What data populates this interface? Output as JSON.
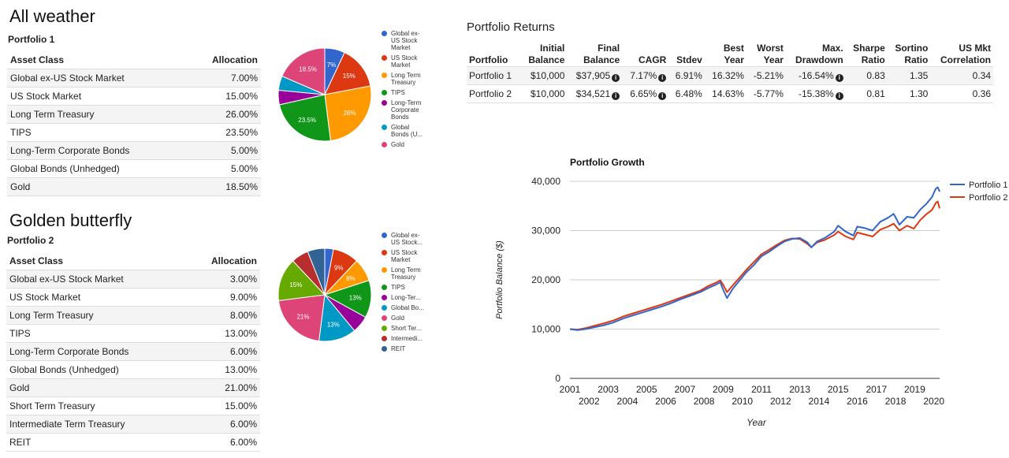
{
  "sections": [
    {
      "heading": "All weather",
      "portfolio": "Portfolio 1",
      "col_asset": "Asset Class",
      "col_alloc": "Allocation",
      "rows": [
        {
          "asset": "Global ex-US Stock Market",
          "alloc": "7.00%"
        },
        {
          "asset": "US Stock Market",
          "alloc": "15.00%"
        },
        {
          "asset": "Long Term Treasury",
          "alloc": "26.00%"
        },
        {
          "asset": "TIPS",
          "alloc": "23.50%"
        },
        {
          "asset": "Long-Term Corporate Bonds",
          "alloc": "5.00%"
        },
        {
          "asset": "Global Bonds (Unhedged)",
          "alloc": "5.00%"
        },
        {
          "asset": "Gold",
          "alloc": "18.50%"
        }
      ]
    },
    {
      "heading": "Golden butterfly",
      "portfolio": "Portfolio 2",
      "col_asset": "Asset Class",
      "col_alloc": "Allocation",
      "rows": [
        {
          "asset": "Global ex-US Stock Market",
          "alloc": "3.00%"
        },
        {
          "asset": "US Stock Market",
          "alloc": "9.00%"
        },
        {
          "asset": "Long Term Treasury",
          "alloc": "8.00%"
        },
        {
          "asset": "TIPS",
          "alloc": "13.00%"
        },
        {
          "asset": "Long-Term Corporate Bonds",
          "alloc": "6.00%"
        },
        {
          "asset": "Global Bonds (Unhedged)",
          "alloc": "13.00%"
        },
        {
          "asset": "Gold",
          "alloc": "21.00%"
        },
        {
          "asset": "Short Term Treasury",
          "alloc": "15.00%"
        },
        {
          "asset": "Intermediate Term Treasury",
          "alloc": "6.00%"
        },
        {
          "asset": "REIT",
          "alloc": "6.00%"
        }
      ]
    }
  ],
  "returns": {
    "title": "Portfolio Returns",
    "headers": [
      {
        "l1": "",
        "l2": "Portfolio"
      },
      {
        "l1": "Initial",
        "l2": "Balance"
      },
      {
        "l1": "Final",
        "l2": "Balance"
      },
      {
        "l1": "",
        "l2": "CAGR"
      },
      {
        "l1": "",
        "l2": "Stdev"
      },
      {
        "l1": "Best",
        "l2": "Year"
      },
      {
        "l1": "Worst",
        "l2": "Year"
      },
      {
        "l1": "Max.",
        "l2": "Drawdown"
      },
      {
        "l1": "Sharpe",
        "l2": "Ratio"
      },
      {
        "l1": "Sortino",
        "l2": "Ratio"
      },
      {
        "l1": "US Mkt",
        "l2": "Correlation"
      }
    ],
    "rows": [
      {
        "name": "Portfolio 1",
        "initial": "$10,000",
        "final": "$37,905",
        "cagr": "7.17%",
        "stdev": "6.91%",
        "best": "16.32%",
        "worst": "-5.21%",
        "maxdd": "-16.54%",
        "sharpe": "0.83",
        "sortino": "1.35",
        "corr": "0.34"
      },
      {
        "name": "Portfolio 2",
        "initial": "$10,000",
        "final": "$34,521",
        "cagr": "6.65%",
        "stdev": "6.48%",
        "best": "14.63%",
        "worst": "-5.77%",
        "maxdd": "-15.38%",
        "sharpe": "0.81",
        "sortino": "1.30",
        "corr": "0.36"
      }
    ],
    "info_glyph": "i"
  },
  "chart_data": [
    {
      "type": "pie",
      "title": "Portfolio 1",
      "labels": [
        "Global ex-US Stock Market",
        "US Stock Market",
        "Long Term Treasury",
        "TIPS",
        "Long-Term Corporate Bonds",
        "Global Bonds (U...",
        "Gold"
      ],
      "legend_labels": [
        [
          "Global ex-",
          "US Stock",
          "Market"
        ],
        [
          "US Stock",
          "Market"
        ],
        [
          "Long Term",
          "Treasury"
        ],
        [
          "TIPS"
        ],
        [
          "Long-Term",
          "Corporate",
          "Bonds"
        ],
        [
          "Global",
          "Bonds (U..."
        ],
        [
          "Gold"
        ]
      ],
      "values": [
        7,
        15,
        26,
        23.5,
        5,
        5,
        18.5
      ],
      "slice_labels": [
        "7%",
        "15%",
        "26%",
        "23.5%",
        "",
        "",
        "18.5%"
      ],
      "colors": [
        "#3366cc",
        "#dc3912",
        "#ff9900",
        "#109618",
        "#990099",
        "#0099c6",
        "#dd4477"
      ]
    },
    {
      "type": "pie",
      "title": "Portfolio 2",
      "legend_labels": [
        [
          "Global ex-",
          "US Stock..."
        ],
        [
          "US Stock",
          "Market"
        ],
        [
          "Long Term",
          "Treasury"
        ],
        [
          "TIPS"
        ],
        [
          "Long-Ter..."
        ],
        [
          "Global Bo..."
        ],
        [
          "Gold"
        ],
        [
          "Short Ter..."
        ],
        [
          "Intermedi..."
        ],
        [
          "REIT"
        ]
      ],
      "values": [
        3,
        9,
        8,
        13,
        6,
        13,
        21,
        15,
        6,
        6
      ],
      "slice_labels": [
        "",
        "9%",
        "8%",
        "13%",
        "",
        "13%",
        "21%",
        "15%",
        "",
        ""
      ],
      "colors": [
        "#3366cc",
        "#dc3912",
        "#ff9900",
        "#109618",
        "#990099",
        "#0099c6",
        "#dd4477",
        "#66aa00",
        "#b82e2e",
        "#316395"
      ]
    },
    {
      "type": "line",
      "title": "Portfolio Growth",
      "xlabel": "Year",
      "ylabel": "Portfolio Balance ($)",
      "xlim": [
        2001,
        2020.3
      ],
      "ylim": [
        0,
        40000
      ],
      "yticks": [
        "0",
        "10,000",
        "20,000",
        "30,000",
        "40,000"
      ],
      "xticks_top": [
        "2001",
        "2003",
        "2005",
        "2007",
        "2009",
        "2011",
        "2013",
        "2015",
        "2017",
        "2019"
      ],
      "xticks_bottom": [
        "2002",
        "2004",
        "2006",
        "2008",
        "2010",
        "2012",
        "2014",
        "2016",
        "2018",
        "2020"
      ],
      "series": [
        {
          "name": "Portfolio 1",
          "color": "#3366cc",
          "x": [
            2001,
            2001.4,
            2001.8,
            2002.3,
            2002.8,
            2003.3,
            2003.8,
            2004.3,
            2004.8,
            2005.3,
            2005.8,
            2006.3,
            2006.8,
            2007.3,
            2007.8,
            2008.2,
            2008.6,
            2008.85,
            2009.0,
            2009.2,
            2009.5,
            2009.8,
            2010.2,
            2010.6,
            2011.0,
            2011.4,
            2011.8,
            2012.2,
            2012.6,
            2013.0,
            2013.4,
            2013.6,
            2013.9,
            2014.3,
            2014.8,
            2015.0,
            2015.4,
            2015.8,
            2016.0,
            2016.4,
            2016.8,
            2017.2,
            2017.6,
            2017.9,
            2018.2,
            2018.6,
            2018.95,
            2019.3,
            2019.6,
            2019.9,
            2020.1,
            2020.2,
            2020.3
          ],
          "y": [
            10000,
            9800,
            10000,
            10400,
            10800,
            11400,
            12200,
            12800,
            13400,
            14000,
            14600,
            15300,
            16100,
            16800,
            17500,
            18300,
            19000,
            19500,
            18000,
            16300,
            18200,
            19600,
            21500,
            23000,
            24800,
            25700,
            26800,
            27800,
            28300,
            28500,
            27600,
            26600,
            27800,
            28500,
            29800,
            31000,
            29800,
            29000,
            30800,
            30500,
            30000,
            31800,
            32600,
            33400,
            31200,
            32800,
            32600,
            34300,
            35400,
            36800,
            38500,
            38800,
            37900
          ]
        },
        {
          "name": "Portfolio 2",
          "color": "#dc3912",
          "x": [
            2001,
            2001.4,
            2001.8,
            2002.3,
            2002.8,
            2003.3,
            2003.8,
            2004.3,
            2004.8,
            2005.3,
            2005.8,
            2006.3,
            2006.8,
            2007.3,
            2007.8,
            2008.2,
            2008.6,
            2008.85,
            2009.0,
            2009.2,
            2009.5,
            2009.8,
            2010.2,
            2010.6,
            2011.0,
            2011.4,
            2011.8,
            2012.2,
            2012.6,
            2013.0,
            2013.4,
            2013.6,
            2013.9,
            2014.3,
            2014.8,
            2015.0,
            2015.4,
            2015.8,
            2016.0,
            2016.4,
            2016.8,
            2017.2,
            2017.6,
            2017.9,
            2018.2,
            2018.6,
            2018.95,
            2019.3,
            2019.6,
            2019.9,
            2020.1,
            2020.2,
            2020.3
          ],
          "y": [
            10000,
            9900,
            10200,
            10700,
            11200,
            11800,
            12600,
            13200,
            13800,
            14400,
            15000,
            15700,
            16400,
            17100,
            17800,
            18700,
            19400,
            19900,
            19000,
            17500,
            18900,
            20200,
            22000,
            23600,
            25200,
            26100,
            27100,
            28000,
            28400,
            28300,
            27300,
            26600,
            27600,
            28100,
            29100,
            29800,
            28800,
            28200,
            29600,
            29200,
            28800,
            30200,
            30800,
            31400,
            30000,
            31000,
            30400,
            32200,
            33300,
            34200,
            35600,
            35900,
            34500
          ]
        }
      ],
      "legend": "right"
    }
  ]
}
